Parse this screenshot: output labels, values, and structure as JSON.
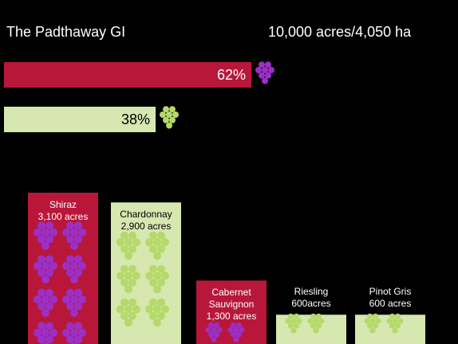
{
  "chart_data": [
    {
      "type": "hbar",
      "title": "The Padthaway GI",
      "subtitle": "10,000 acres/4,050 ha",
      "values": [
        62,
        38
      ],
      "value_labels": [
        "62%",
        "38%"
      ],
      "colors": [
        "#b8173a",
        "#d6e7b0"
      ]
    },
    {
      "type": "bar",
      "categories": [
        "Shiraz",
        "Chardonnay",
        "Cabernet Sauvignon",
        "Riesling",
        "Pinot Gris"
      ],
      "values": [
        3100,
        2900,
        1300,
        600,
        600
      ],
      "value_labels": [
        "3,100 acres",
        "2,900 acres",
        "1,300 acres",
        "600acres",
        "600 acres"
      ],
      "colors": [
        "#b8173a",
        "#d6e7b0",
        "#b8173a",
        "#d6e7b0",
        "#d6e7b0"
      ]
    }
  ]
}
